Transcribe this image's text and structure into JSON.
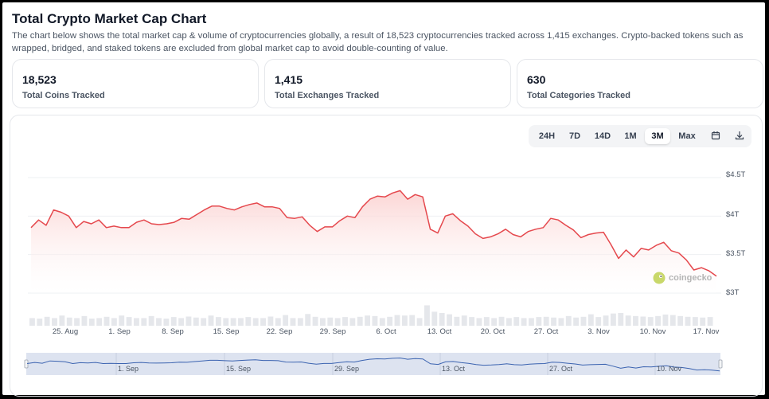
{
  "header": {
    "title": "Total Crypto Market Cap Chart",
    "description": "The chart below shows the total market cap & volume of cryptocurrencies globally, a result of 18,523 cryptocurrencies tracked across 1,415 exchanges. Crypto-backed tokens such as wrapped, bridged, and staked tokens are excluded from global market cap to avoid double-counting of value."
  },
  "stats": [
    {
      "value": "18,523",
      "label": "Total Coins Tracked"
    },
    {
      "value": "1,415",
      "label": "Total Exchanges Tracked"
    },
    {
      "value": "630",
      "label": "Total Categories Tracked"
    }
  ],
  "toolbar": {
    "ranges": [
      "24H",
      "7D",
      "14D",
      "1M",
      "3M",
      "Max"
    ],
    "active": "3M",
    "calendar_icon": "calendar-icon",
    "download_icon": "download-icon"
  },
  "watermark": {
    "text": "coingecko"
  },
  "colors": {
    "line": "#e5484d",
    "fill_top": "#fbd0cf",
    "volume": "#e5e7eb",
    "navigator_line": "#3b63b0",
    "navigator_bg": "#dde3f0"
  },
  "chart_data": {
    "type": "area",
    "yaxis_ticks": [
      "$3T",
      "$3.5T",
      "$4T",
      "$4.5T"
    ],
    "ylim": [
      3.0,
      4.5
    ],
    "xaxis_ticks": [
      "25. Aug",
      "1. Sep",
      "8. Sep",
      "15. Sep",
      "22. Sep",
      "29. Sep",
      "6. Oct",
      "13. Oct",
      "20. Oct",
      "27. Oct",
      "3. Nov",
      "10. Nov",
      "17. Nov"
    ],
    "navigator_ticks": [
      "1. Sep",
      "15. Sep",
      "29. Sep",
      "13. Oct",
      "27. Oct",
      "10. Nov"
    ],
    "start_date": "2025-08-21",
    "series": [
      {
        "values": [
          3.85,
          3.95,
          3.88,
          4.08,
          4.05,
          4.0,
          3.85,
          3.93,
          3.9,
          3.95,
          3.85,
          3.87,
          3.85,
          3.85,
          3.92,
          3.95,
          3.9,
          3.89,
          3.9,
          3.92,
          3.97,
          3.96,
          4.02,
          4.08,
          4.13,
          4.13,
          4.1,
          4.08,
          4.12,
          4.15,
          4.17,
          4.12,
          4.12,
          4.1,
          3.98,
          3.97,
          3.99,
          3.88,
          3.8,
          3.86,
          3.86,
          3.94,
          4.0,
          3.98,
          4.12,
          4.22,
          4.26,
          4.25,
          4.3,
          4.33,
          4.22,
          4.28,
          4.25,
          3.83,
          3.78,
          4.0,
          4.03,
          3.94,
          3.87,
          3.77,
          3.71,
          3.73,
          3.77,
          3.83,
          3.76,
          3.73,
          3.8,
          3.83,
          3.85,
          3.97,
          3.95,
          3.88,
          3.82,
          3.72,
          3.76,
          3.78,
          3.79,
          3.63,
          3.45,
          3.56,
          3.47,
          3.58,
          3.56,
          3.62,
          3.66,
          3.55,
          3.52,
          3.43,
          3.3,
          3.33,
          3.29,
          3.22
        ]
      }
    ],
    "volume": [
      0.3,
      0.28,
      0.35,
      0.3,
      0.4,
      0.32,
      0.3,
      0.38,
      0.28,
      0.3,
      0.35,
      0.3,
      0.4,
      0.34,
      0.3,
      0.3,
      0.38,
      0.3,
      0.28,
      0.34,
      0.3,
      0.36,
      0.32,
      0.3,
      0.4,
      0.34,
      0.3,
      0.3,
      0.3,
      0.34,
      0.3,
      0.3,
      0.36,
      0.3,
      0.42,
      0.3,
      0.3,
      0.46,
      0.35,
      0.3,
      0.32,
      0.3,
      0.34,
      0.3,
      0.35,
      0.4,
      0.38,
      0.3,
      0.35,
      0.42,
      0.4,
      0.42,
      0.3,
      0.8,
      0.55,
      0.5,
      0.45,
      0.35,
      0.4,
      0.34,
      0.3,
      0.34,
      0.3,
      0.35,
      0.3,
      0.34,
      0.3,
      0.3,
      0.34,
      0.35,
      0.32,
      0.3,
      0.38,
      0.32,
      0.35,
      0.45,
      0.34,
      0.4,
      0.48,
      0.5,
      0.4,
      0.38,
      0.36,
      0.34,
      0.38,
      0.44,
      0.42,
      0.38,
      0.35,
      0.34,
      0.32,
      0.34
    ]
  }
}
